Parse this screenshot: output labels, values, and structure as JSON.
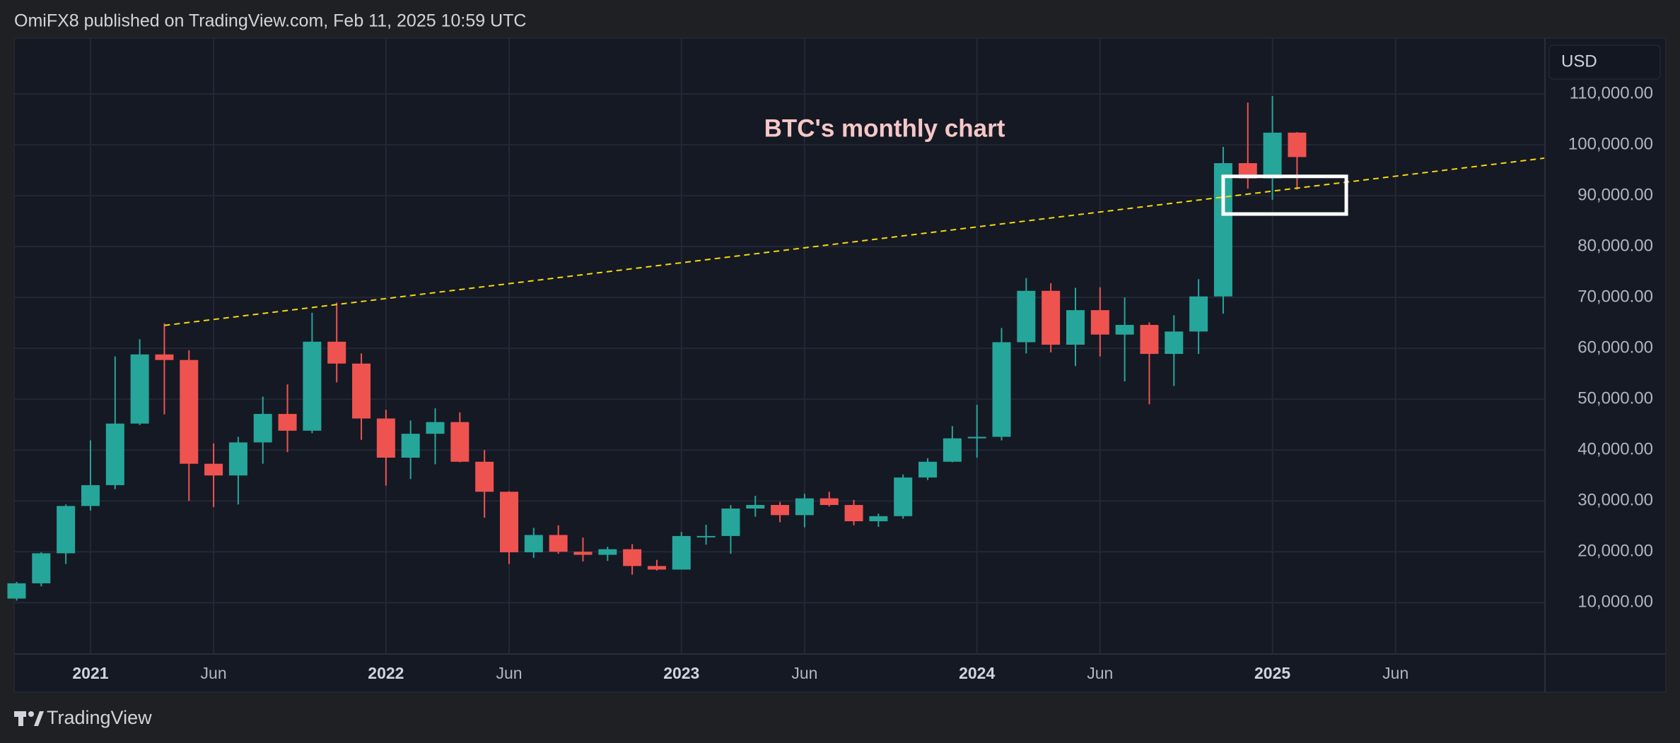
{
  "header": "OmiFX8 published on TradingView.com, Feb 11, 2025 10:59 UTC",
  "currency": "USD",
  "brand": "TradingView",
  "chart_data": {
    "type": "candlestick",
    "title": "BTC's monthly chart",
    "x": [
      "2020-10",
      "2020-11",
      "2020-12",
      "2021-01",
      "2021-02",
      "2021-03",
      "2021-04",
      "2021-05",
      "2021-06",
      "2021-07",
      "2021-08",
      "2021-09",
      "2021-10",
      "2021-11",
      "2021-12",
      "2022-01",
      "2022-02",
      "2022-03",
      "2022-04",
      "2022-05",
      "2022-06",
      "2022-07",
      "2022-08",
      "2022-09",
      "2022-10",
      "2022-11",
      "2022-12",
      "2023-01",
      "2023-02",
      "2023-03",
      "2023-04",
      "2023-05",
      "2023-06",
      "2023-07",
      "2023-08",
      "2023-09",
      "2023-10",
      "2023-11",
      "2023-12",
      "2024-01",
      "2024-02",
      "2024-03",
      "2024-04",
      "2024-05",
      "2024-06",
      "2024-07",
      "2024-08",
      "2024-09",
      "2024-10",
      "2024-11",
      "2024-12",
      "2025-01",
      "2025-02"
    ],
    "open": [
      10800,
      13800,
      19700,
      29000,
      33100,
      45200,
      58800,
      57700,
      37300,
      35000,
      41500,
      47100,
      43800,
      61300,
      57000,
      46200,
      38500,
      43200,
      45500,
      37700,
      31800,
      19900,
      23300,
      20000,
      19400,
      20500,
      17200,
      16500,
      23100,
      23100,
      28500,
      29200,
      27200,
      30500,
      29200,
      26000,
      27000,
      34600,
      37700,
      42300,
      42600,
      61200,
      71300,
      60700,
      67500,
      62700,
      64600,
      58900,
      63300,
      70200,
      96400,
      93400,
      102400
    ],
    "high": [
      14100,
      19900,
      29300,
      41900,
      58400,
      61800,
      64900,
      59600,
      41300,
      42600,
      50500,
      52900,
      67000,
      69000,
      59000,
      47900,
      45800,
      48200,
      47400,
      40000,
      31900,
      24700,
      25200,
      22800,
      21000,
      21500,
      18400,
      23900,
      25300,
      29200,
      31000,
      29800,
      31400,
      31800,
      30200,
      27500,
      35200,
      38400,
      44700,
      48900,
      64000,
      73800,
      72800,
      71900,
      72000,
      70000,
      65100,
      66500,
      73600,
      99600,
      108300,
      109600,
      102500
    ],
    "low": [
      10400,
      13200,
      17600,
      28100,
      32300,
      44900,
      47000,
      30000,
      28800,
      29300,
      37300,
      39600,
      43300,
      53300,
      42000,
      33000,
      34300,
      37200,
      37600,
      26700,
      17600,
      18800,
      19600,
      18100,
      18200,
      15500,
      16300,
      16500,
      21400,
      19600,
      26900,
      25800,
      24800,
      28900,
      25200,
      24900,
      26500,
      34100,
      37600,
      38500,
      41900,
      59000,
      59200,
      56500,
      58400,
      53500,
      49000,
      52600,
      58900,
      66800,
      91400,
      89200,
      91200
    ],
    "close": [
      13800,
      19700,
      29000,
      33100,
      45200,
      58800,
      57700,
      37300,
      35000,
      41500,
      47100,
      43800,
      61300,
      57000,
      46200,
      38500,
      43200,
      45500,
      37700,
      31800,
      19900,
      23300,
      20000,
      19400,
      20500,
      17200,
      16500,
      23100,
      23100,
      28500,
      29200,
      27200,
      30500,
      29200,
      26000,
      27000,
      34600,
      37700,
      42300,
      42600,
      61200,
      71300,
      60700,
      67500,
      62700,
      64600,
      58900,
      63300,
      70200,
      96400,
      93400,
      102400,
      97600
    ],
    "colors": {
      "up": "#26a69a",
      "down": "#ef5350"
    },
    "xlim": [
      "2020-09-28",
      "2025-12-03"
    ],
    "ylim": [
      -100,
      120700
    ],
    "yticks": [
      {
        "value": 10000,
        "label": "10,000.00"
      },
      {
        "value": 20000,
        "label": "20,000.00"
      },
      {
        "value": 30000,
        "label": "30,000.00"
      },
      {
        "value": 40000,
        "label": "40,000.00"
      },
      {
        "value": 50000,
        "label": "50,000.00"
      },
      {
        "value": 60000,
        "label": "60,000.00"
      },
      {
        "value": 70000,
        "label": "70,000.00"
      },
      {
        "value": 80000,
        "label": "80,000.00"
      },
      {
        "value": 90000,
        "label": "90,000.00"
      },
      {
        "value": 100000,
        "label": "100,000.00"
      },
      {
        "value": 110000,
        "label": "110,000.00"
      }
    ],
    "xticks": [
      {
        "value": "2021-01",
        "label": "2021"
      },
      {
        "value": "2021-06",
        "label": "Jun"
      },
      {
        "value": "2022-01",
        "label": "2022"
      },
      {
        "value": "2022-06",
        "label": "Jun"
      },
      {
        "value": "2023-01",
        "label": "2023"
      },
      {
        "value": "2023-06",
        "label": "Jun"
      },
      {
        "value": "2024-01",
        "label": "2024"
      },
      {
        "value": "2024-06",
        "label": "Jun"
      },
      {
        "value": "2025-01",
        "label": "2025"
      },
      {
        "value": "2025-06",
        "label": "Jun"
      }
    ],
    "grid": true,
    "trendline": {
      "x": [
        "2021-04",
        "2025-12-03"
      ],
      "y": [
        64500,
        97400
      ],
      "color": "#f5d90a"
    },
    "box": {
      "x": [
        "2024-10-31",
        "2025-04-01"
      ],
      "y": [
        86400,
        93800
      ],
      "color": "#ffffff"
    }
  }
}
